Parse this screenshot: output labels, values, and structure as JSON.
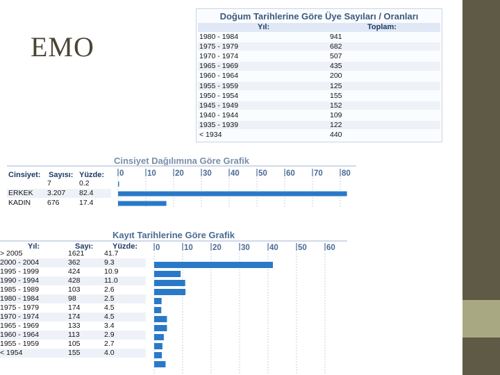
{
  "slide": {
    "title": "EMO"
  },
  "birth_panel": {
    "title": "Doğum Tarihlerine Göre Üye Sayıları / Oranları",
    "col_year": "Yıl:",
    "col_total": "Toplam:",
    "rows": [
      {
        "year": "1980 - 1984",
        "total": "941"
      },
      {
        "year": "1975 - 1979",
        "total": "682"
      },
      {
        "year": "1970 - 1974",
        "total": "507"
      },
      {
        "year": "1965 - 1969",
        "total": "435"
      },
      {
        "year": "1960 - 1964",
        "total": "200"
      },
      {
        "year": "1955 - 1959",
        "total": "125"
      },
      {
        "year": "1950 - 1954",
        "total": "155"
      },
      {
        "year": "1945 - 1949",
        "total": "152"
      },
      {
        "year": "1940 - 1944",
        "total": "109"
      },
      {
        "year": "1935 - 1939",
        "total": "122"
      },
      {
        "year": "< 1934",
        "total": "440"
      }
    ]
  },
  "gender_panel": {
    "title": "Cinsiyet Dağılımına Göre Grafik",
    "col_gender": "Cinsiyet:",
    "col_count": "Sayısı:",
    "col_percent": "Yüzde:",
    "rows": [
      {
        "gender": "",
        "count": "7",
        "percent": "0.2"
      },
      {
        "gender": "ERKEK",
        "count": "3.207",
        "percent": "82.4"
      },
      {
        "gender": "KADIN",
        "count": "676",
        "percent": "17.4"
      }
    ]
  },
  "reg_panel": {
    "title": "Kayıt Tarihlerine Göre Grafik",
    "col_year": "Yıl:",
    "col_count": "Sayı:",
    "col_percent": "Yüzde:",
    "rows": [
      {
        "year": "> 2005",
        "count": "1621",
        "percent": "41.7"
      },
      {
        "year": "2000 - 2004",
        "count": "362",
        "percent": "9.3"
      },
      {
        "year": "1995 - 1999",
        "count": "424",
        "percent": "10.9"
      },
      {
        "year": "1990 - 1994",
        "count": "428",
        "percent": "11.0"
      },
      {
        "year": "1985 - 1989",
        "count": "103",
        "percent": "2.6"
      },
      {
        "year": "1980 - 1984",
        "count": "98",
        "percent": "2.5"
      },
      {
        "year": "1975 - 1979",
        "count": "174",
        "percent": "4.5"
      },
      {
        "year": "1970 - 1974",
        "count": "174",
        "percent": "4.5"
      },
      {
        "year": "1965 - 1969",
        "count": "133",
        "percent": "3.4"
      },
      {
        "year": "1960 - 1964",
        "count": "113",
        "percent": "2.9"
      },
      {
        "year": "1955 - 1959",
        "count": "105",
        "percent": "2.7"
      },
      {
        "year": "< 1954",
        "count": "155",
        "percent": "4.0"
      }
    ]
  },
  "chart_data": [
    {
      "type": "bar",
      "title": "Cinsiyet Dağılımına Göre Grafik",
      "categories": [
        "",
        "ERKEK",
        "KADIN"
      ],
      "values": [
        0.2,
        82.4,
        17.4
      ],
      "ticks": [
        "0",
        "10",
        "20",
        "30",
        "40",
        "50",
        "60",
        "70",
        "80"
      ],
      "xlim": [
        0,
        80
      ],
      "orientation": "horizontal",
      "color": "#2a79c8"
    },
    {
      "type": "bar",
      "title": "Kayıt Tarihlerine Göre Grafik",
      "categories": [
        "> 2005",
        "2000 - 2004",
        "1995 - 1999",
        "1990 - 1994",
        "1985 - 1989",
        "1980 - 1984",
        "1975 - 1979",
        "1970 - 1974",
        "1965 - 1969",
        "1960 - 1964",
        "1955 - 1959",
        "< 1954"
      ],
      "values": [
        41.7,
        9.3,
        10.9,
        11.0,
        2.6,
        2.5,
        4.5,
        4.5,
        3.4,
        2.9,
        2.7,
        4.0
      ],
      "ticks": [
        "0",
        "10",
        "20",
        "30",
        "40",
        "50",
        "60"
      ],
      "xlim": [
        0,
        60
      ],
      "orientation": "horizontal",
      "color": "#2a79c8"
    }
  ]
}
